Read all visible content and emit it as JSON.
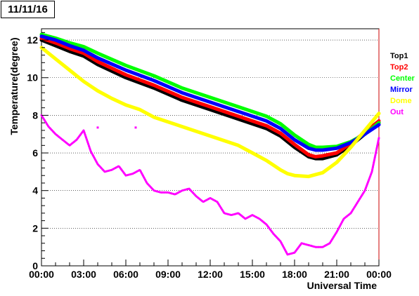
{
  "header": {
    "date": "11/11/16"
  },
  "chart_data": {
    "type": "line",
    "xlabel": "Universal Time",
    "ylabel": "Temperature(degree)",
    "xlim": [
      0,
      24
    ],
    "ylim": [
      0,
      12.6
    ],
    "x_ticks": [
      {
        "v": 0,
        "label": "00:00"
      },
      {
        "v": 3,
        "label": "03:00"
      },
      {
        "v": 6,
        "label": "06:00"
      },
      {
        "v": 9,
        "label": "09:00"
      },
      {
        "v": 12,
        "label": "12:00"
      },
      {
        "v": 15,
        "label": "15:00"
      },
      {
        "v": 18,
        "label": "18:00"
      },
      {
        "v": 21,
        "label": "21:00"
      },
      {
        "v": 24,
        "label": "00:00"
      }
    ],
    "y_ticks": [
      {
        "v": 0,
        "label": "0"
      },
      {
        "v": 2,
        "label": "2"
      },
      {
        "v": 4,
        "label": "4"
      },
      {
        "v": 6,
        "label": "6"
      },
      {
        "v": 8,
        "label": "8"
      },
      {
        "v": 10,
        "label": "10"
      },
      {
        "v": 12,
        "label": "12"
      }
    ],
    "grid": "horizontal dotted",
    "legend_position": "right",
    "series": [
      {
        "name": "Top1",
        "color": "#000000",
        "x": [
          0,
          1,
          2,
          3,
          4,
          6,
          8,
          10,
          12,
          14,
          16,
          17,
          18,
          19,
          19.5,
          20,
          21,
          22,
          23,
          24
        ],
        "y": [
          12.0,
          11.7,
          11.4,
          11.15,
          10.7,
          10.0,
          9.45,
          8.8,
          8.3,
          7.8,
          7.3,
          6.9,
          6.3,
          5.8,
          5.7,
          5.7,
          5.9,
          6.4,
          7.0,
          7.6
        ]
      },
      {
        "name": "Top2",
        "color": "#ff0000",
        "x": [
          0,
          1,
          2,
          3,
          4,
          6,
          8,
          10,
          12,
          14,
          16,
          17,
          18,
          19,
          19.5,
          20,
          21,
          22,
          23,
          24
        ],
        "y": [
          12.1,
          11.85,
          11.55,
          11.3,
          10.85,
          10.15,
          9.6,
          8.95,
          8.45,
          7.95,
          7.45,
          7.05,
          6.45,
          5.9,
          5.8,
          5.85,
          6.0,
          6.5,
          7.1,
          7.7
        ]
      },
      {
        "name": "Center",
        "color": "#00ff00",
        "x": [
          0,
          1,
          2,
          3,
          4,
          6,
          8,
          10,
          12,
          14,
          16,
          17,
          18,
          19,
          19.5,
          20,
          21,
          22,
          23,
          24
        ],
        "y": [
          12.3,
          12.1,
          11.85,
          11.65,
          11.3,
          10.65,
          10.1,
          9.45,
          8.95,
          8.45,
          7.95,
          7.55,
          6.95,
          6.45,
          6.3,
          6.3,
          6.35,
          6.6,
          7.0,
          7.6
        ]
      },
      {
        "name": "Mirror",
        "color": "#0000ff",
        "x": [
          0,
          1,
          2,
          3,
          4,
          6,
          8,
          10,
          12,
          14,
          16,
          17,
          18,
          19,
          19.5,
          20,
          21,
          22,
          23,
          24
        ],
        "y": [
          12.2,
          12.0,
          11.7,
          11.45,
          11.05,
          10.4,
          9.85,
          9.2,
          8.7,
          8.2,
          7.7,
          7.3,
          6.7,
          6.25,
          6.15,
          6.15,
          6.25,
          6.55,
          7.0,
          7.5
        ]
      },
      {
        "name": "Dome",
        "color": "#ffff00",
        "x": [
          0,
          1,
          2,
          3,
          4,
          5,
          6,
          7,
          8,
          10,
          12,
          14,
          15,
          16,
          17,
          17.5,
          18,
          19,
          20,
          21,
          22,
          23,
          24
        ],
        "y": [
          11.6,
          11.0,
          10.4,
          9.8,
          9.3,
          8.9,
          8.55,
          8.3,
          7.9,
          7.4,
          6.9,
          6.4,
          6.0,
          5.6,
          5.1,
          4.9,
          4.8,
          4.75,
          4.95,
          5.5,
          6.3,
          7.2,
          8.1
        ]
      },
      {
        "name": "Out",
        "color": "#ff00ff",
        "x": [
          0,
          0.5,
          1,
          1.5,
          2,
          2.5,
          3,
          3.5,
          4,
          4.5,
          5,
          5.5,
          6,
          6.5,
          7,
          7.5,
          8,
          8.5,
          9,
          9.5,
          10,
          10.5,
          11,
          11.5,
          12,
          12.5,
          13,
          13.5,
          14,
          14.5,
          15,
          15.5,
          16,
          16.5,
          17,
          17.5,
          18,
          18.5,
          19,
          19.5,
          20,
          20.5,
          21,
          21.5,
          22,
          22.5,
          23,
          23.5,
          24
        ],
        "y": [
          8.0,
          7.4,
          7.0,
          6.7,
          6.4,
          6.7,
          7.2,
          6.1,
          5.4,
          5.0,
          5.1,
          5.3,
          4.8,
          4.9,
          5.1,
          4.4,
          4.0,
          3.9,
          3.9,
          3.8,
          4.0,
          4.1,
          3.7,
          3.4,
          3.6,
          3.4,
          2.8,
          2.7,
          2.8,
          2.5,
          2.7,
          2.5,
          2.2,
          1.7,
          1.3,
          0.6,
          0.7,
          1.2,
          1.1,
          1.0,
          1.0,
          1.2,
          1.8,
          2.5,
          2.8,
          3.4,
          4.0,
          5.0,
          6.8
        ]
      }
    ],
    "markers": [
      {
        "x": 4.0,
        "y": 7.35,
        "color": "#ff00ff"
      },
      {
        "x": 6.7,
        "y": 7.35,
        "color": "#ff00ff"
      }
    ]
  }
}
